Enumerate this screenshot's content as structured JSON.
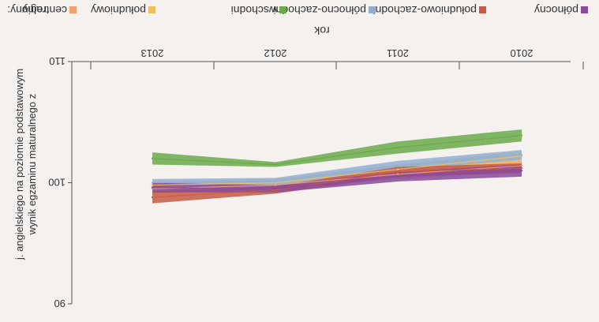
{
  "chart_data": {
    "type": "line",
    "title": "",
    "xlabel": "rok",
    "ylabel": "wynik egzaminu maturalnego z j. angielskiego na poziomie podstawowym",
    "x": [
      "2010",
      "2011",
      "2012",
      "2013"
    ],
    "ylim": [
      90,
      110
    ],
    "yticks": [
      "90",
      "100",
      "110"
    ],
    "grid": false,
    "legend_position": "top",
    "legend_title": "regiony:",
    "series": [
      {
        "name": "centralny",
        "color": "#f0a070",
        "values": [
          101.4,
          100.7,
          99.8,
          99.5
        ],
        "band": [
          0.5,
          0.4,
          0.3,
          0.4
        ]
      },
      {
        "name": "południowy",
        "color": "#f0c060",
        "values": [
          102.2,
          101.1,
          100.0,
          99.8
        ],
        "band": [
          0.4,
          0.4,
          0.3,
          0.3
        ]
      },
      {
        "name": "wschodni",
        "color": "#6aaa4a",
        "values": [
          103.9,
          102.9,
          101.5,
          102.0
        ],
        "band": [
          0.5,
          0.5,
          0.2,
          0.5
        ]
      },
      {
        "name": "północno-zachodni",
        "color": "#90afd5",
        "values": [
          102.3,
          101.4,
          100.1,
          100.0
        ],
        "band": [
          0.4,
          0.4,
          0.3,
          0.3
        ]
      },
      {
        "name": "południowo-zachodni",
        "color": "#c65a45",
        "values": [
          101.2,
          100.9,
          99.4,
          98.8
        ],
        "band": [
          0.4,
          0.4,
          0.3,
          0.5
        ]
      },
      {
        "name": "północny",
        "color": "#8a4a9a",
        "values": [
          101.0,
          100.5,
          99.5,
          99.6
        ],
        "band": [
          0.5,
          0.4,
          0.3,
          0.4
        ]
      }
    ]
  }
}
